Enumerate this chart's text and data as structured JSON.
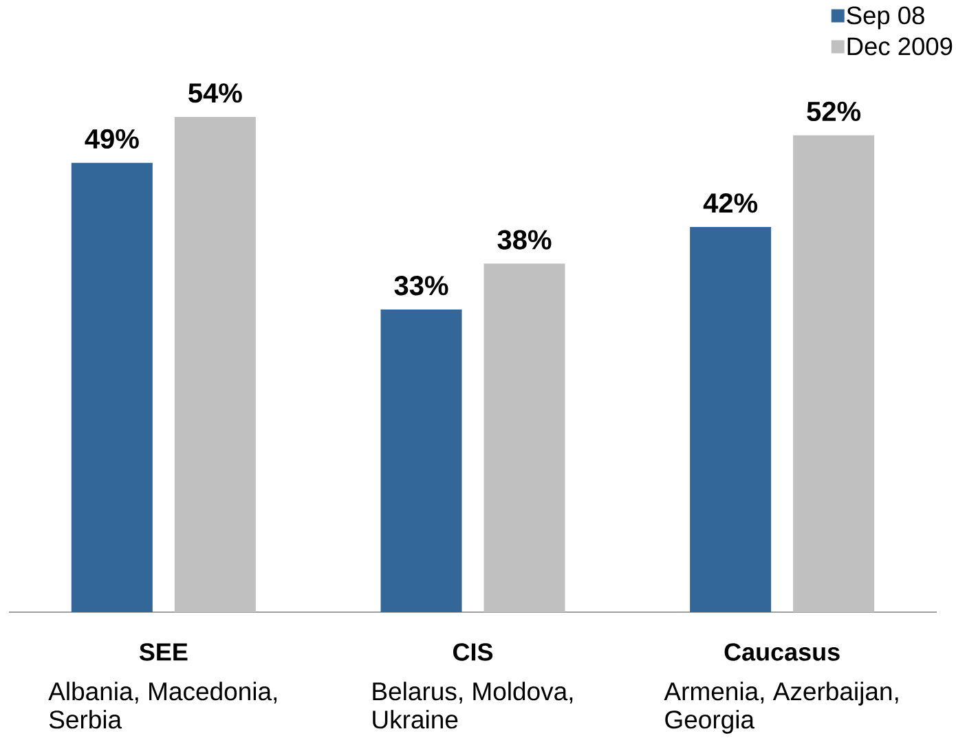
{
  "chart_data": {
    "type": "bar",
    "categories": [
      "SEE",
      "CIS",
      "Caucasus"
    ],
    "series": [
      {
        "name": "Sep 08",
        "color": "#336699",
        "values": [
          49,
          33,
          42
        ],
        "value_labels": [
          "49%",
          "33%",
          "42%"
        ]
      },
      {
        "name": "Dec 2009",
        "color": "#c0c0c0",
        "values": [
          54,
          38,
          52
        ],
        "value_labels": [
          "54%",
          "38%",
          "52%"
        ]
      }
    ],
    "legend": "top right",
    "annotations": [
      "Albania, Macedonia, Serbia",
      "Belarus, Moldova, Ukraine",
      "Armenia, Azerbaijan, Georgia"
    ]
  }
}
